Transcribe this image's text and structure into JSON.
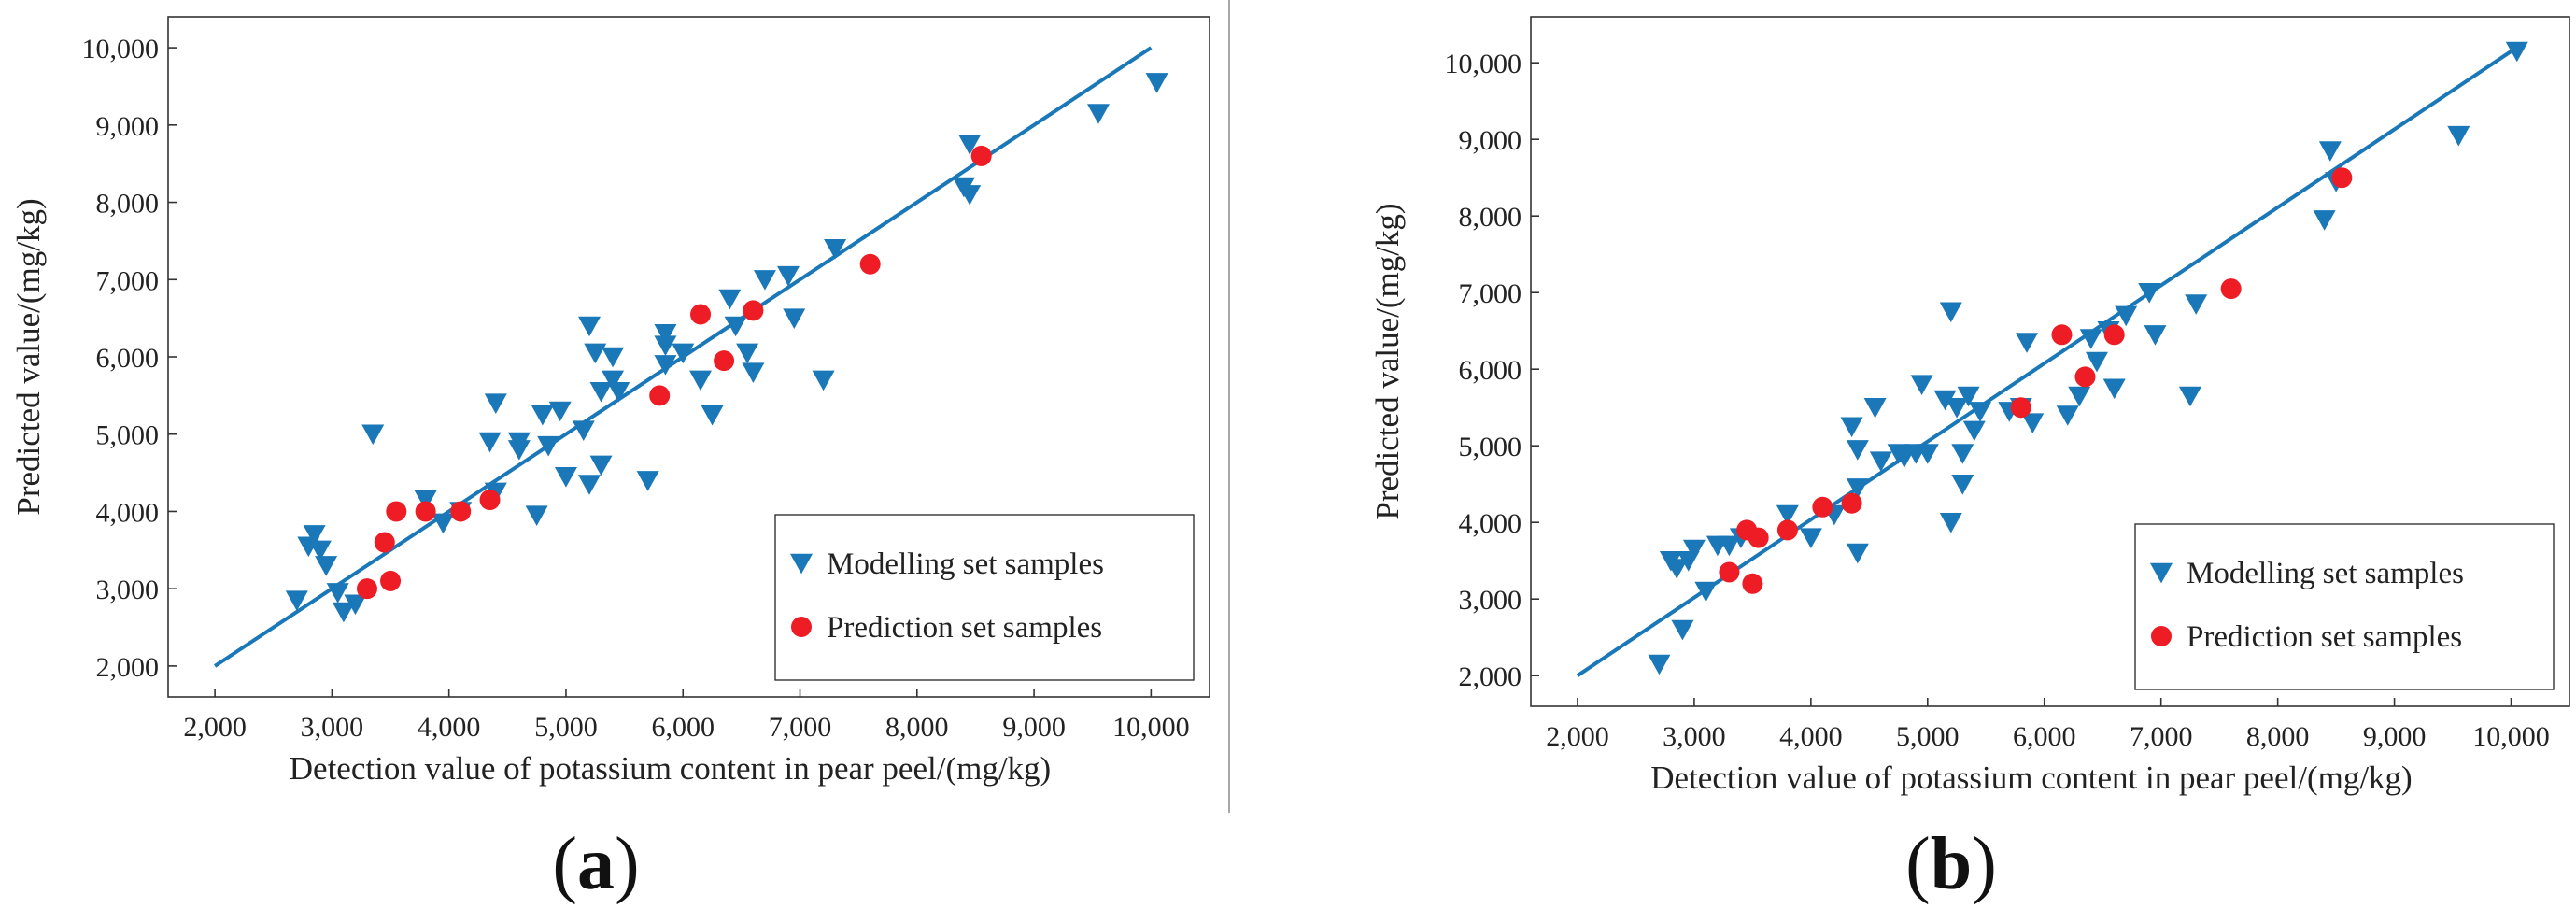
{
  "chart_data": [
    {
      "type": "scatter",
      "panel": "a",
      "xlabel": "Detection value of potassium content in pear peel/(mg/kg)",
      "ylabel": "Predicted value/(mg/kg)",
      "xlim": [
        1600,
        10500
      ],
      "ylim": [
        1600,
        10400
      ],
      "xticks": [
        2000,
        3000,
        4000,
        5000,
        6000,
        7000,
        8000,
        9000,
        10000
      ],
      "xtick_labels": [
        "2,000",
        "3,000",
        "4,000",
        "5,000",
        "6,000",
        "7,000",
        "8,000",
        "9,000",
        "10,000"
      ],
      "yticks": [
        2000,
        3000,
        4000,
        5000,
        6000,
        7000,
        8000,
        9000,
        10000
      ],
      "ytick_labels": [
        "2,000",
        "3,000",
        "4,000",
        "5,000",
        "6,000",
        "7,000",
        "8,000",
        "9,000",
        "10,000"
      ],
      "fit_line": {
        "x": [
          2000,
          10000
        ],
        "y": [
          2000,
          10000
        ]
      },
      "legend_position": "bottom-right",
      "series": [
        {
          "name": "Modelling set samples",
          "marker": "triangle-down",
          "color": "#1a78b8",
          "points": [
            [
              2700,
              2850
            ],
            [
              2800,
              3550
            ],
            [
              2850,
              3700
            ],
            [
              2900,
              3500
            ],
            [
              2950,
              3300
            ],
            [
              3050,
              2950
            ],
            [
              3100,
              2700
            ],
            [
              3200,
              2800
            ],
            [
              3350,
              5000
            ],
            [
              3800,
              4150
            ],
            [
              3950,
              3850
            ],
            [
              4100,
              4000
            ],
            [
              4350,
              4900
            ],
            [
              4400,
              5400
            ],
            [
              4400,
              4250
            ],
            [
              4600,
              4800
            ],
            [
              4600,
              4900
            ],
            [
              4750,
              3950
            ],
            [
              4800,
              5250
            ],
            [
              4850,
              4850
            ],
            [
              4950,
              5300
            ],
            [
              5000,
              4450
            ],
            [
              5150,
              5050
            ],
            [
              5200,
              4350
            ],
            [
              5200,
              6400
            ],
            [
              5250,
              6050
            ],
            [
              5300,
              4600
            ],
            [
              5300,
              5550
            ],
            [
              5400,
              6000
            ],
            [
              5400,
              5700
            ],
            [
              5450,
              5550
            ],
            [
              5700,
              4400
            ],
            [
              5850,
              6300
            ],
            [
              5850,
              6150
            ],
            [
              5850,
              5900
            ],
            [
              6000,
              6050
            ],
            [
              6150,
              5700
            ],
            [
              6250,
              5250
            ],
            [
              6400,
              6750
            ],
            [
              6450,
              6400
            ],
            [
              6550,
              6050
            ],
            [
              6600,
              5800
            ],
            [
              6700,
              7000
            ],
            [
              6900,
              7050
            ],
            [
              6950,
              6500
            ],
            [
              7200,
              5700
            ],
            [
              7300,
              7400
            ],
            [
              8400,
              8200
            ],
            [
              8450,
              8100
            ],
            [
              8450,
              8750
            ],
            [
              9550,
              9150
            ],
            [
              10050,
              9550
            ]
          ]
        },
        {
          "name": "Prediction set samples",
          "marker": "circle",
          "color": "#ee1c24",
          "points": [
            [
              3300,
              3000
            ],
            [
              3450,
              3600
            ],
            [
              3500,
              3100
            ],
            [
              3550,
              4000
            ],
            [
              3800,
              4000
            ],
            [
              4100,
              4000
            ],
            [
              4350,
              4150
            ],
            [
              5800,
              5500
            ],
            [
              6150,
              6550
            ],
            [
              6350,
              5950
            ],
            [
              6600,
              6600
            ],
            [
              7600,
              7200
            ],
            [
              8550,
              8600
            ]
          ]
        }
      ]
    },
    {
      "type": "scatter",
      "panel": "b",
      "xlabel": "Detection value of potassium content in pear peel/(mg/kg)",
      "ylabel": "Predicted value/(mg/kg)",
      "xlim": [
        1600,
        10500
      ],
      "ylim": [
        1600,
        10600
      ],
      "xticks": [
        2000,
        3000,
        4000,
        5000,
        6000,
        7000,
        8000,
        9000,
        10000
      ],
      "xtick_labels": [
        "2,000",
        "3,000",
        "4,000",
        "5,000",
        "6,000",
        "7,000",
        "8,000",
        "9,000",
        "10,000"
      ],
      "yticks": [
        2000,
        3000,
        4000,
        5000,
        6000,
        7000,
        8000,
        9000,
        10000
      ],
      "ytick_labels": [
        "2,000",
        "3,000",
        "4,000",
        "5,000",
        "6,000",
        "7,000",
        "8,000",
        "9,000",
        "10,000"
      ],
      "fit_line": {
        "x": [
          2000,
          10000
        ],
        "y": [
          2000,
          10150
        ]
      },
      "legend_position": "bottom-right",
      "series": [
        {
          "name": "Modelling set samples",
          "marker": "triangle-down",
          "color": "#1a78b8",
          "points": [
            [
              2700,
              2150
            ],
            [
              2800,
              3500
            ],
            [
              2850,
              3400
            ],
            [
              2900,
              2600
            ],
            [
              2950,
              3500
            ],
            [
              3000,
              3650
            ],
            [
              3100,
              3100
            ],
            [
              3200,
              3700
            ],
            [
              3300,
              3700
            ],
            [
              3400,
              3800
            ],
            [
              3800,
              4100
            ],
            [
              4000,
              3800
            ],
            [
              4200,
              4100
            ],
            [
              4350,
              5250
            ],
            [
              4400,
              3600
            ],
            [
              4400,
              4950
            ],
            [
              4400,
              4450
            ],
            [
              4550,
              5500
            ],
            [
              4600,
              4800
            ],
            [
              4750,
              4900
            ],
            [
              4800,
              4850
            ],
            [
              4900,
              4900
            ],
            [
              4950,
              5800
            ],
            [
              5000,
              4900
            ],
            [
              5150,
              5600
            ],
            [
              5200,
              4000
            ],
            [
              5200,
              6750
            ],
            [
              5250,
              5500
            ],
            [
              5300,
              4500
            ],
            [
              5300,
              4900
            ],
            [
              5350,
              5650
            ],
            [
              5400,
              5200
            ],
            [
              5450,
              5450
            ],
            [
              5700,
              5450
            ],
            [
              5800,
              5500
            ],
            [
              5850,
              6350
            ],
            [
              5900,
              5300
            ],
            [
              6200,
              5400
            ],
            [
              6300,
              5650
            ],
            [
              6400,
              6400
            ],
            [
              6450,
              6100
            ],
            [
              6550,
              6500
            ],
            [
              6600,
              5750
            ],
            [
              6700,
              6700
            ],
            [
              6900,
              7000
            ],
            [
              6950,
              6450
            ],
            [
              7250,
              5650
            ],
            [
              7300,
              6850
            ],
            [
              8400,
              7950
            ],
            [
              8450,
              8850
            ],
            [
              8500,
              8450
            ],
            [
              9550,
              9050
            ],
            [
              10050,
              10150
            ]
          ]
        },
        {
          "name": "Prediction set samples",
          "marker": "circle",
          "color": "#ee1c24",
          "points": [
            [
              3300,
              3350
            ],
            [
              3450,
              3900
            ],
            [
              3500,
              3200
            ],
            [
              3550,
              3800
            ],
            [
              3800,
              3900
            ],
            [
              4100,
              4200
            ],
            [
              4350,
              4250
            ],
            [
              5800,
              5500
            ],
            [
              6150,
              6450
            ],
            [
              6350,
              5900
            ],
            [
              6600,
              6450
            ],
            [
              7600,
              7050
            ],
            [
              8550,
              8500
            ]
          ]
        }
      ]
    }
  ],
  "panel_labels": [
    "a",
    "b"
  ]
}
